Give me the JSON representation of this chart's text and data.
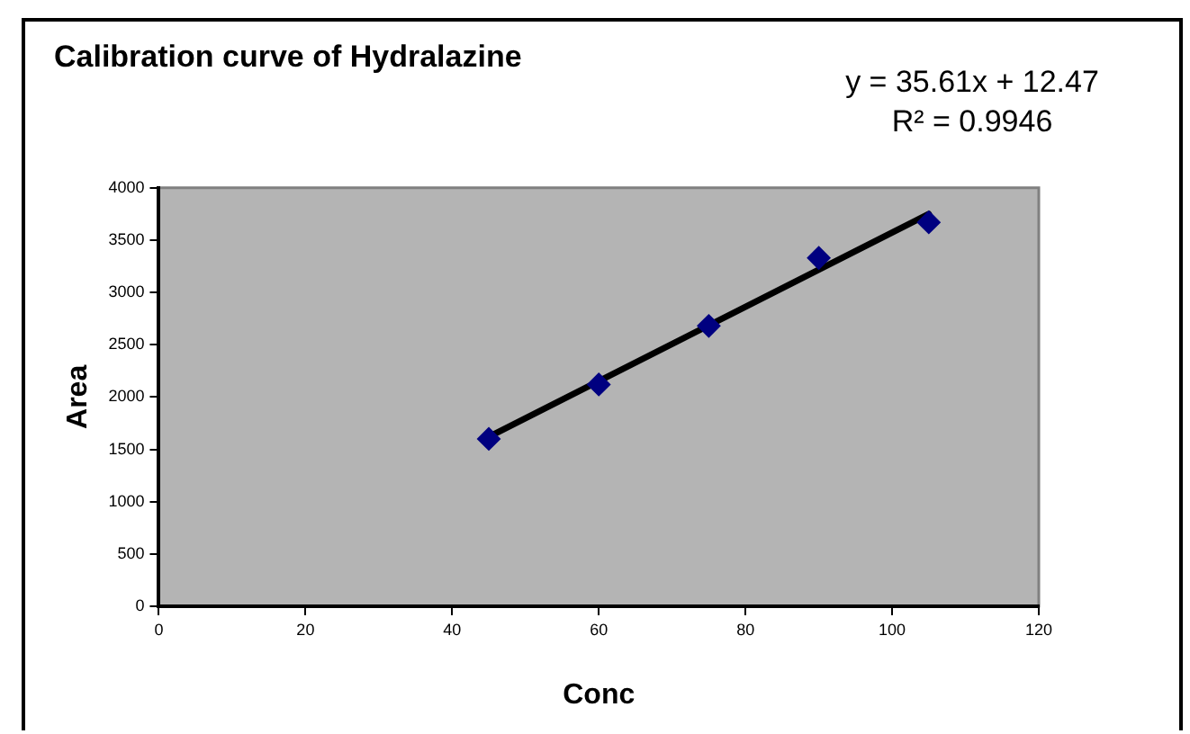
{
  "chart_data": {
    "type": "scatter",
    "title": "Calibration curve of Hydralazine",
    "xlabel": "Conc",
    "ylabel": "Area",
    "annotations": [
      "y = 35.61x + 12.47",
      "R² = 0.9946"
    ],
    "xlim": [
      0,
      120
    ],
    "xticks": [
      0,
      20,
      40,
      60,
      80,
      100,
      120
    ],
    "ylim": [
      0,
      4000
    ],
    "yticks": [
      0,
      500,
      1000,
      1500,
      2000,
      2500,
      3000,
      3500,
      4000
    ],
    "marker": "diamond",
    "legend": false,
    "grid": false,
    "series": [
      {
        "type": "scatter",
        "color": "#000080",
        "x": [
          45,
          60,
          75,
          90,
          105
        ],
        "values": [
          1600,
          2120,
          2680,
          3330,
          3670
        ]
      },
      {
        "type": "line",
        "color": "#000000",
        "marker": "none",
        "x": [
          45,
          105
        ],
        "values": [
          1620,
          3750
        ]
      }
    ]
  }
}
